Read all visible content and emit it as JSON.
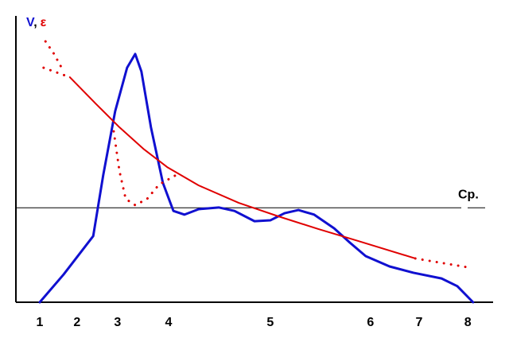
{
  "chart_data": {
    "type": "line",
    "y_label": [
      {
        "text": "V",
        "color": "#1010d0"
      },
      {
        "text": ",",
        "color": "#000000"
      },
      {
        "text": "ε",
        "color": "#e00000"
      }
    ],
    "xlim": [
      0,
      100
    ],
    "ylim": [
      0,
      100
    ],
    "xticks": [
      {
        "value": 5,
        "label": "1"
      },
      {
        "value": 12.8,
        "label": "2"
      },
      {
        "value": 21.3,
        "label": "3"
      },
      {
        "value": 32,
        "label": "4"
      },
      {
        "value": 53.3,
        "label": "5"
      },
      {
        "value": 74.3,
        "label": "6"
      },
      {
        "value": 84.5,
        "label": "7"
      },
      {
        "value": 94.7,
        "label": "8"
      }
    ],
    "average": {
      "label": "Ср.",
      "value": 33
    },
    "series": [
      {
        "color": "#1010d0",
        "style": "solid",
        "width": 3,
        "x": [
          5,
          10,
          16.2,
          18.3,
          20.8,
          23.3,
          25,
          26.3,
          28.3,
          30.8,
          33,
          35.3,
          38.3,
          42.5,
          45.8,
          50,
          53.3,
          56.3,
          59.2,
          62.5,
          66.7,
          70,
          73.3,
          78.3,
          83.3,
          89.2,
          92.5,
          95.8
        ],
        "values": [
          0,
          9.7,
          23.1,
          44.4,
          66.7,
          81.9,
          86.7,
          80.6,
          61.1,
          41.7,
          31.9,
          30.6,
          32.5,
          33.1,
          31.9,
          28.3,
          28.6,
          31.1,
          32.2,
          30.6,
          25.8,
          20.8,
          16.1,
          12.5,
          10.3,
          8.3,
          5.6,
          0
        ]
      },
      {
        "color": "#e00000",
        "style": "solid",
        "width": 2,
        "x": [
          11.3,
          16.7,
          21.7,
          26.7,
          31.7,
          38.3,
          46.7,
          55,
          63.3,
          71.7,
          83.7
        ],
        "values": [
          78.6,
          69.4,
          61.1,
          53.6,
          47.2,
          40.8,
          34.7,
          30,
          25.6,
          21.4,
          15.3
        ]
      },
      {
        "color": "#e00000",
        "style": "dotted",
        "width": 3,
        "x": [
          6.2,
          8,
          10,
          null,
          5.8,
          11.3,
          null,
          20.5,
          21.7,
          23,
          25,
          27.5,
          30,
          34.2,
          null,
          83.7,
          94.7
        ],
        "values": [
          91.1,
          86.7,
          80.6,
          null,
          81.9,
          78.6,
          null,
          59.7,
          45.8,
          36.1,
          33.9,
          36.1,
          41.1,
          45,
          null,
          15.3,
          12.2
        ]
      }
    ]
  }
}
